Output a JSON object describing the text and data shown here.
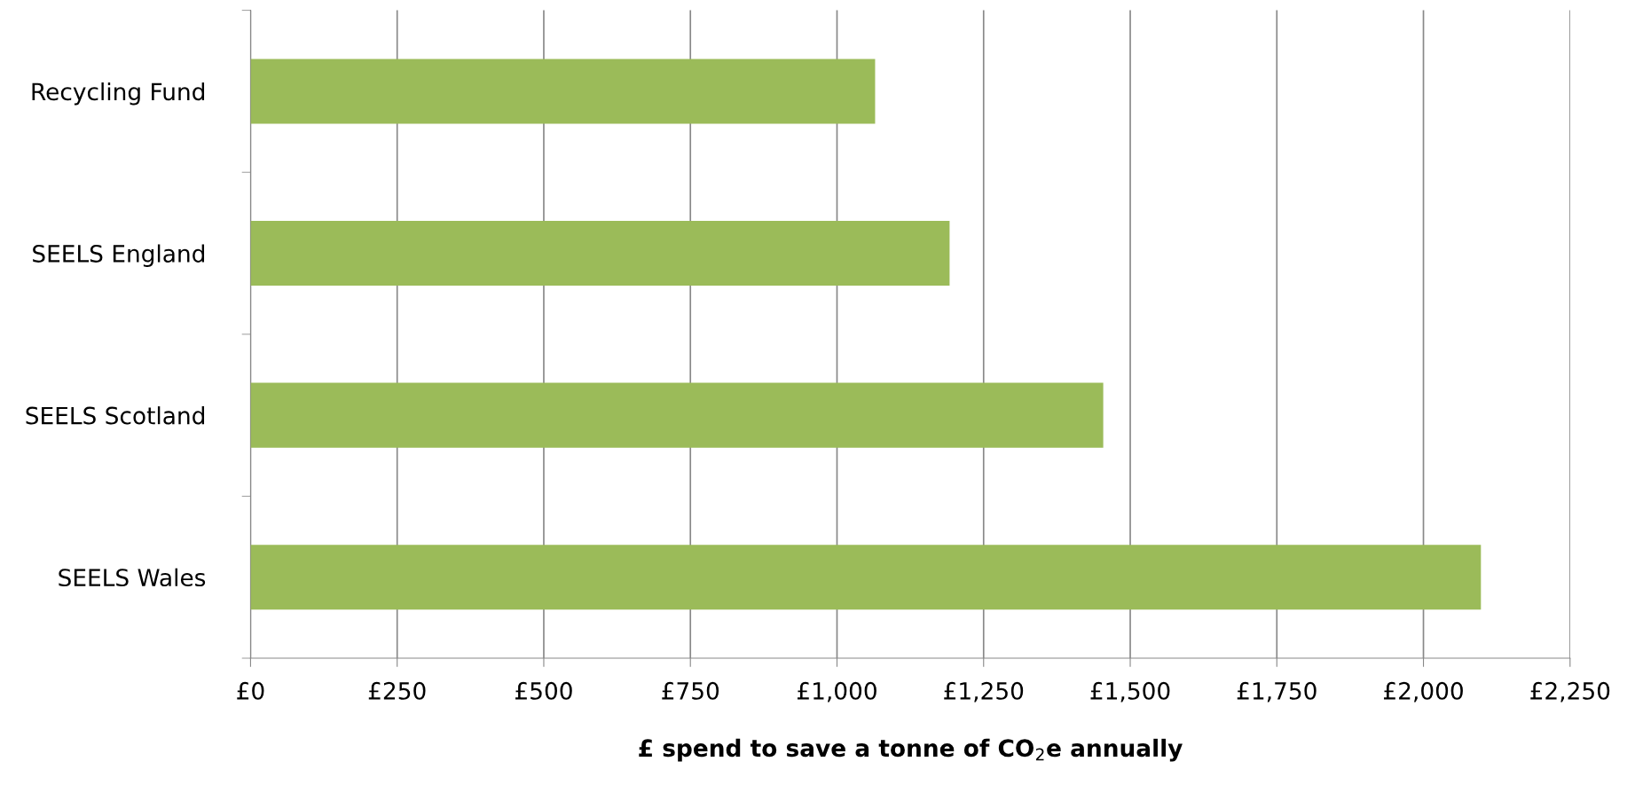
{
  "chart_data": {
    "type": "bar",
    "orientation": "horizontal",
    "categories": [
      "Recycling Fund",
      "SEELS England",
      "SEELS Scotland",
      "SEELS Wales"
    ],
    "values": [
      1065,
      1192,
      1454,
      2098
    ],
    "color": "#9bbb59",
    "xlabel": "£ spend to save a tonne of CO$_{2}$e annually",
    "xlim": [
      0,
      2250
    ],
    "xticks": [
      {
        "value": 0,
        "label": "£0"
      },
      {
        "value": 250,
        "label": "£250"
      },
      {
        "value": 500,
        "label": "£500"
      },
      {
        "value": 750,
        "label": "£750"
      },
      {
        "value": 1000,
        "label": "£1,000"
      },
      {
        "value": 1250,
        "label": "£1,250"
      },
      {
        "value": 1500,
        "label": "£1,500"
      },
      {
        "value": 1750,
        "label": "£1,750"
      },
      {
        "value": 2000,
        "label": "£2,000"
      },
      {
        "value": 2250,
        "label": "£2,250"
      }
    ],
    "grid": "x",
    "legend": false
  }
}
